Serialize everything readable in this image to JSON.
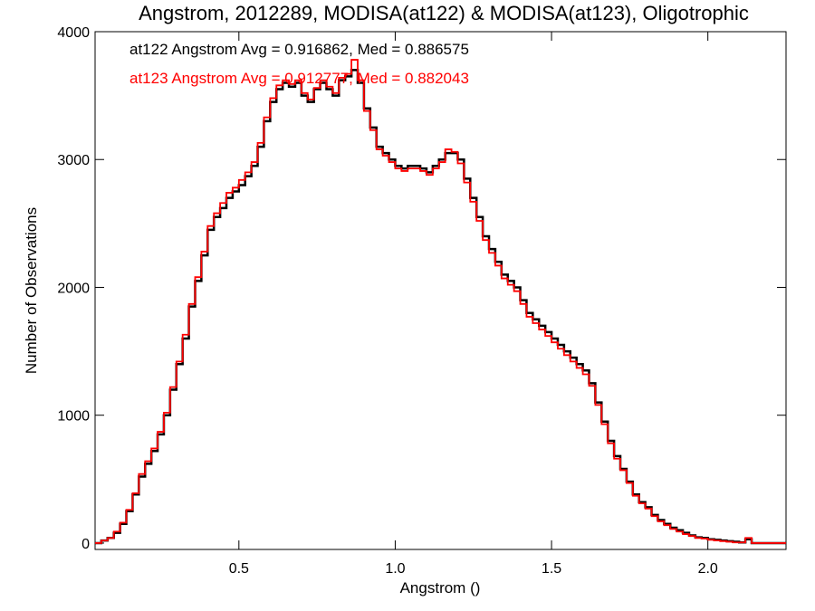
{
  "chart_data": {
    "type": "line",
    "step": true,
    "title": "Angstrom, 2012289, MODISA(at122) & MODISA(at123), Oligotrophic",
    "xlabel": "Angstrom ()",
    "ylabel": "Number of Observations",
    "xlim": [
      0.04,
      2.25
    ],
    "ylim": [
      -50,
      4000
    ],
    "x_ticks": [
      0.5,
      1.0,
      1.5,
      2.0
    ],
    "x_tick_labels": [
      "0.5",
      "1.0",
      "1.5",
      "2.0"
    ],
    "y_ticks": [
      0,
      1000,
      2000,
      3000,
      4000
    ],
    "y_tick_labels": [
      "0",
      "1000",
      "2000",
      "3000",
      "4000"
    ],
    "grid": false,
    "annotations": [
      {
        "text": "at122 Angstrom Avg = 0.916862, Med = 0.886575",
        "color": "#000000"
      },
      {
        "text": "at123 Angstrom Avg = 0.912777, Med = 0.882043",
        "color": "#ff0000"
      }
    ],
    "series": [
      {
        "color": "#000000",
        "x": [
          0.04,
          0.06,
          0.08,
          0.1,
          0.12,
          0.14,
          0.16,
          0.18,
          0.2,
          0.22,
          0.24,
          0.26,
          0.28,
          0.3,
          0.32,
          0.34,
          0.36,
          0.38,
          0.4,
          0.42,
          0.44,
          0.46,
          0.48,
          0.5,
          0.52,
          0.54,
          0.56,
          0.58,
          0.6,
          0.62,
          0.64,
          0.66,
          0.68,
          0.7,
          0.72,
          0.74,
          0.76,
          0.78,
          0.8,
          0.82,
          0.84,
          0.86,
          0.88,
          0.9,
          0.92,
          0.94,
          0.96,
          0.98,
          1.0,
          1.02,
          1.04,
          1.06,
          1.08,
          1.1,
          1.12,
          1.14,
          1.16,
          1.18,
          1.2,
          1.22,
          1.24,
          1.26,
          1.28,
          1.3,
          1.32,
          1.34,
          1.36,
          1.38,
          1.4,
          1.42,
          1.44,
          1.46,
          1.48,
          1.5,
          1.52,
          1.54,
          1.56,
          1.58,
          1.6,
          1.62,
          1.64,
          1.66,
          1.68,
          1.7,
          1.72,
          1.74,
          1.76,
          1.78,
          1.8,
          1.82,
          1.84,
          1.86,
          1.88,
          1.9,
          1.92,
          1.94,
          1.96,
          1.98,
          2.0,
          2.02,
          2.04,
          2.06,
          2.08,
          2.1,
          2.12,
          2.14,
          2.16,
          2.18,
          2.2,
          2.22
        ],
        "y": [
          0,
          20,
          40,
          80,
          150,
          250,
          380,
          520,
          620,
          720,
          850,
          1000,
          1200,
          1400,
          1600,
          1850,
          2050,
          2250,
          2450,
          2550,
          2620,
          2700,
          2750,
          2800,
          2870,
          2950,
          3100,
          3300,
          3450,
          3550,
          3600,
          3570,
          3600,
          3500,
          3450,
          3550,
          3600,
          3550,
          3500,
          3620,
          3650,
          3700,
          3600,
          3400,
          3250,
          3100,
          3050,
          3000,
          2950,
          2930,
          2950,
          2950,
          2930,
          2900,
          2950,
          3000,
          3050,
          3050,
          3000,
          2850,
          2700,
          2550,
          2400,
          2300,
          2200,
          2100,
          2050,
          2000,
          1900,
          1800,
          1750,
          1700,
          1650,
          1600,
          1550,
          1500,
          1450,
          1400,
          1350,
          1250,
          1100,
          950,
          800,
          680,
          580,
          480,
          380,
          320,
          280,
          220,
          180,
          150,
          120,
          100,
          80,
          60,
          45,
          40,
          30,
          25,
          20,
          15,
          10,
          5,
          30,
          0,
          0,
          0,
          0,
          0
        ]
      },
      {
        "color": "#ff0000",
        "x": [
          0.04,
          0.06,
          0.08,
          0.1,
          0.12,
          0.14,
          0.16,
          0.18,
          0.2,
          0.22,
          0.24,
          0.26,
          0.28,
          0.3,
          0.32,
          0.34,
          0.36,
          0.38,
          0.4,
          0.42,
          0.44,
          0.46,
          0.48,
          0.5,
          0.52,
          0.54,
          0.56,
          0.58,
          0.6,
          0.62,
          0.64,
          0.66,
          0.68,
          0.7,
          0.72,
          0.74,
          0.76,
          0.78,
          0.8,
          0.82,
          0.84,
          0.86,
          0.88,
          0.9,
          0.92,
          0.94,
          0.96,
          0.98,
          1.0,
          1.02,
          1.04,
          1.06,
          1.08,
          1.1,
          1.12,
          1.14,
          1.16,
          1.18,
          1.2,
          1.22,
          1.24,
          1.26,
          1.28,
          1.3,
          1.32,
          1.34,
          1.36,
          1.38,
          1.4,
          1.42,
          1.44,
          1.46,
          1.48,
          1.5,
          1.52,
          1.54,
          1.56,
          1.58,
          1.6,
          1.62,
          1.64,
          1.66,
          1.68,
          1.7,
          1.72,
          1.74,
          1.76,
          1.78,
          1.8,
          1.82,
          1.84,
          1.86,
          1.88,
          1.9,
          1.92,
          1.94,
          1.96,
          1.98,
          2.0,
          2.02,
          2.04,
          2.06,
          2.08,
          2.1,
          2.12,
          2.14,
          2.16,
          2.18,
          2.2,
          2.22
        ],
        "y": [
          0,
          20,
          40,
          90,
          160,
          260,
          390,
          540,
          640,
          740,
          870,
          1020,
          1220,
          1420,
          1630,
          1870,
          2080,
          2280,
          2480,
          2580,
          2660,
          2740,
          2780,
          2840,
          2900,
          2980,
          3130,
          3330,
          3480,
          3580,
          3620,
          3590,
          3620,
          3520,
          3470,
          3560,
          3620,
          3570,
          3520,
          3640,
          3670,
          3780,
          3620,
          3380,
          3230,
          3080,
          3030,
          2980,
          2930,
          2910,
          2930,
          2930,
          2910,
          2880,
          2930,
          2980,
          3080,
          3060,
          2970,
          2820,
          2670,
          2520,
          2370,
          2270,
          2170,
          2070,
          2020,
          1970,
          1870,
          1770,
          1720,
          1670,
          1620,
          1570,
          1520,
          1470,
          1420,
          1370,
          1320,
          1230,
          1080,
          930,
          780,
          660,
          570,
          470,
          370,
          310,
          270,
          210,
          170,
          140,
          110,
          90,
          70,
          55,
          40,
          35,
          25,
          20,
          15,
          10,
          5,
          5,
          40,
          0,
          0,
          0,
          0,
          0
        ]
      }
    ]
  }
}
